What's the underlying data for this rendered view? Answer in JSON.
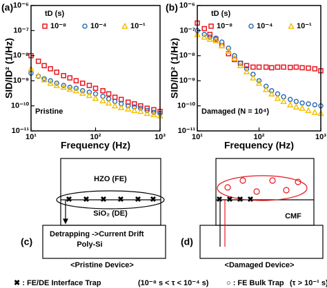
{
  "chart_data": [
    {
      "type": "scatter",
      "panel": "(a)",
      "annotation": "Pristine",
      "xlabel": "Frequency (Hz)",
      "ylabel": "SID/ID² (1/Hz)",
      "legend_title": "tD (s)",
      "log_x": true,
      "log_y": true,
      "x": [
        10,
        13,
        16,
        20,
        25,
        32,
        40,
        50,
        63,
        80,
        100,
        130,
        160,
        200,
        250,
        320,
        400,
        500,
        630,
        800,
        1000
      ],
      "series": [
        {
          "name": "10⁻⁸",
          "color": "#e8141b",
          "marker": "square",
          "values": [
            1e-08,
            6e-09,
            4e-09,
            3e-09,
            2.2e-09,
            1.6e-09,
            1.3e-09,
            1e-09,
            8e-10,
            6.5e-10,
            5e-10,
            4e-10,
            3e-10,
            2.2e-10,
            1.8e-10,
            1.4e-10,
            1.2e-10,
            1e-10,
            8e-11,
            7e-11,
            6e-11
          ]
        },
        {
          "name": "10⁻⁴",
          "color": "#2f6db5",
          "marker": "circle",
          "values": [
            2e-09,
            1.5e-09,
            1.2e-09,
            1e-09,
            8e-10,
            6.5e-10,
            5.5e-10,
            5e-10,
            4e-10,
            3.5e-10,
            3e-10,
            2.4e-10,
            1.9e-10,
            1.5e-10,
            1.2e-10,
            1e-10,
            9e-11,
            8e-11,
            6.5e-11,
            5.5e-11,
            5e-11
          ]
        },
        {
          "name": "10⁻¹",
          "color": "#f5c000",
          "marker": "triangle",
          "values": [
            3e-09,
            1.6e-09,
            1.1e-09,
            8e-10,
            6.5e-10,
            5.5e-10,
            4.6e-10,
            4e-10,
            3.2e-10,
            2.6e-10,
            2e-10,
            1.6e-10,
            1.3e-10,
            1e-10,
            8.5e-11,
            7.5e-11,
            6.5e-11,
            6e-11,
            5e-11,
            4.5e-11,
            4e-11
          ]
        }
      ],
      "xlim": [
        10,
        1000
      ],
      "ylim": [
        1e-11,
        1e-06
      ],
      "xticks": [
        {
          "value": 10,
          "label": "10¹"
        },
        {
          "value": 100,
          "label": "10²"
        },
        {
          "value": 1000,
          "label": "10³"
        }
      ],
      "yticks": [
        {
          "value": 1e-11,
          "label": "10⁻¹¹"
        },
        {
          "value": 1e-10,
          "label": "10⁻¹⁰"
        },
        {
          "value": 1e-09,
          "label": "10⁻⁹"
        },
        {
          "value": 1e-08,
          "label": "10⁻⁸"
        },
        {
          "value": 1e-07,
          "label": "10⁻⁷"
        },
        {
          "value": 1e-06,
          "label": "10⁻⁶"
        }
      ]
    },
    {
      "type": "scatter",
      "panel": "(b)",
      "annotation": "Damaged (N = 10⁴)",
      "xlabel": "Frequency (Hz)",
      "ylabel": "SID/ID² (1/Hz)",
      "legend_title": "tD (s)",
      "log_x": true,
      "log_y": true,
      "x": [
        10,
        13,
        16,
        20,
        25,
        32,
        40,
        50,
        63,
        80,
        100,
        130,
        160,
        200,
        250,
        320,
        400,
        500,
        630,
        800,
        1000
      ],
      "series": [
        {
          "name": "10⁻⁸",
          "color": "#e8141b",
          "marker": "square",
          "values": [
            2e-07,
            1.2e-07,
            7e-08,
            4.5e-08,
            2.5e-08,
            1.2e-08,
            7e-09,
            5e-09,
            4e-09,
            3.5e-09,
            3.5e-09,
            3.5e-09,
            3.3e-09,
            3.5e-09,
            3.5e-09,
            3.4e-09,
            3.5e-09,
            3.3e-09,
            3.2e-09,
            3e-09,
            2.5e-09
          ]
        },
        {
          "name": "10⁻⁴",
          "color": "#2f6db5",
          "marker": "circle",
          "values": [
            1e-07,
            7e-08,
            5.5e-08,
            5e-08,
            3.5e-08,
            2e-08,
            1e-08,
            5e-09,
            3e-09,
            1.8e-09,
            1e-09,
            6e-10,
            4e-10,
            3e-10,
            2.3e-10,
            1.8e-10,
            1.5e-10,
            1.3e-10,
            1.2e-10,
            1.1e-10,
            1e-10
          ]
        },
        {
          "name": "10⁻¹",
          "color": "#f5c000",
          "marker": "triangle",
          "values": [
            7e-08,
            5.5e-08,
            4.5e-08,
            4e-08,
            2.5e-08,
            1.5e-08,
            8e-09,
            4e-09,
            2.3e-09,
            1.3e-09,
            8e-10,
            4.5e-10,
            3e-10,
            2e-10,
            1.5e-10,
            1.1e-10,
            9e-11,
            8e-11,
            6.5e-11,
            5.5e-11,
            5e-11
          ]
        }
      ],
      "xlim": [
        10,
        1000
      ],
      "ylim": [
        1e-11,
        1e-06
      ],
      "xticks": [
        {
          "value": 10,
          "label": "10¹"
        },
        {
          "value": 100,
          "label": "10²"
        },
        {
          "value": 1000,
          "label": "10³"
        }
      ],
      "yticks": [
        {
          "value": 1e-11,
          "label": "10⁻¹¹"
        },
        {
          "value": 1e-10,
          "label": "10⁻¹⁰"
        },
        {
          "value": 1e-09,
          "label": "10⁻⁹"
        },
        {
          "value": 1e-08,
          "label": "10⁻⁸"
        },
        {
          "value": 1e-07,
          "label": "10⁻⁷"
        },
        {
          "value": 1e-06,
          "label": "10⁻⁶"
        }
      ]
    }
  ],
  "diagrams": {
    "c": {
      "panel": "(c)",
      "fe": "HZO (FE)",
      "de": "SiO₂ (DE)",
      "note": "Detrapping ->Current Drift",
      "substrate": "Poly-Si",
      "caption": "<Pristine Device>"
    },
    "d": {
      "panel": "(d)",
      "cmf": "CMF",
      "caption": "<Damaged Device>"
    }
  },
  "footer": {
    "interface": "✖ : FE/DE Interface Trap",
    "interface_range": "(10⁻⁸ s < τ < 10⁻⁴ s)",
    "bulk": "○ : FE Bulk Trap",
    "bulk_range": "(τ > 10⁻¹ s)"
  }
}
